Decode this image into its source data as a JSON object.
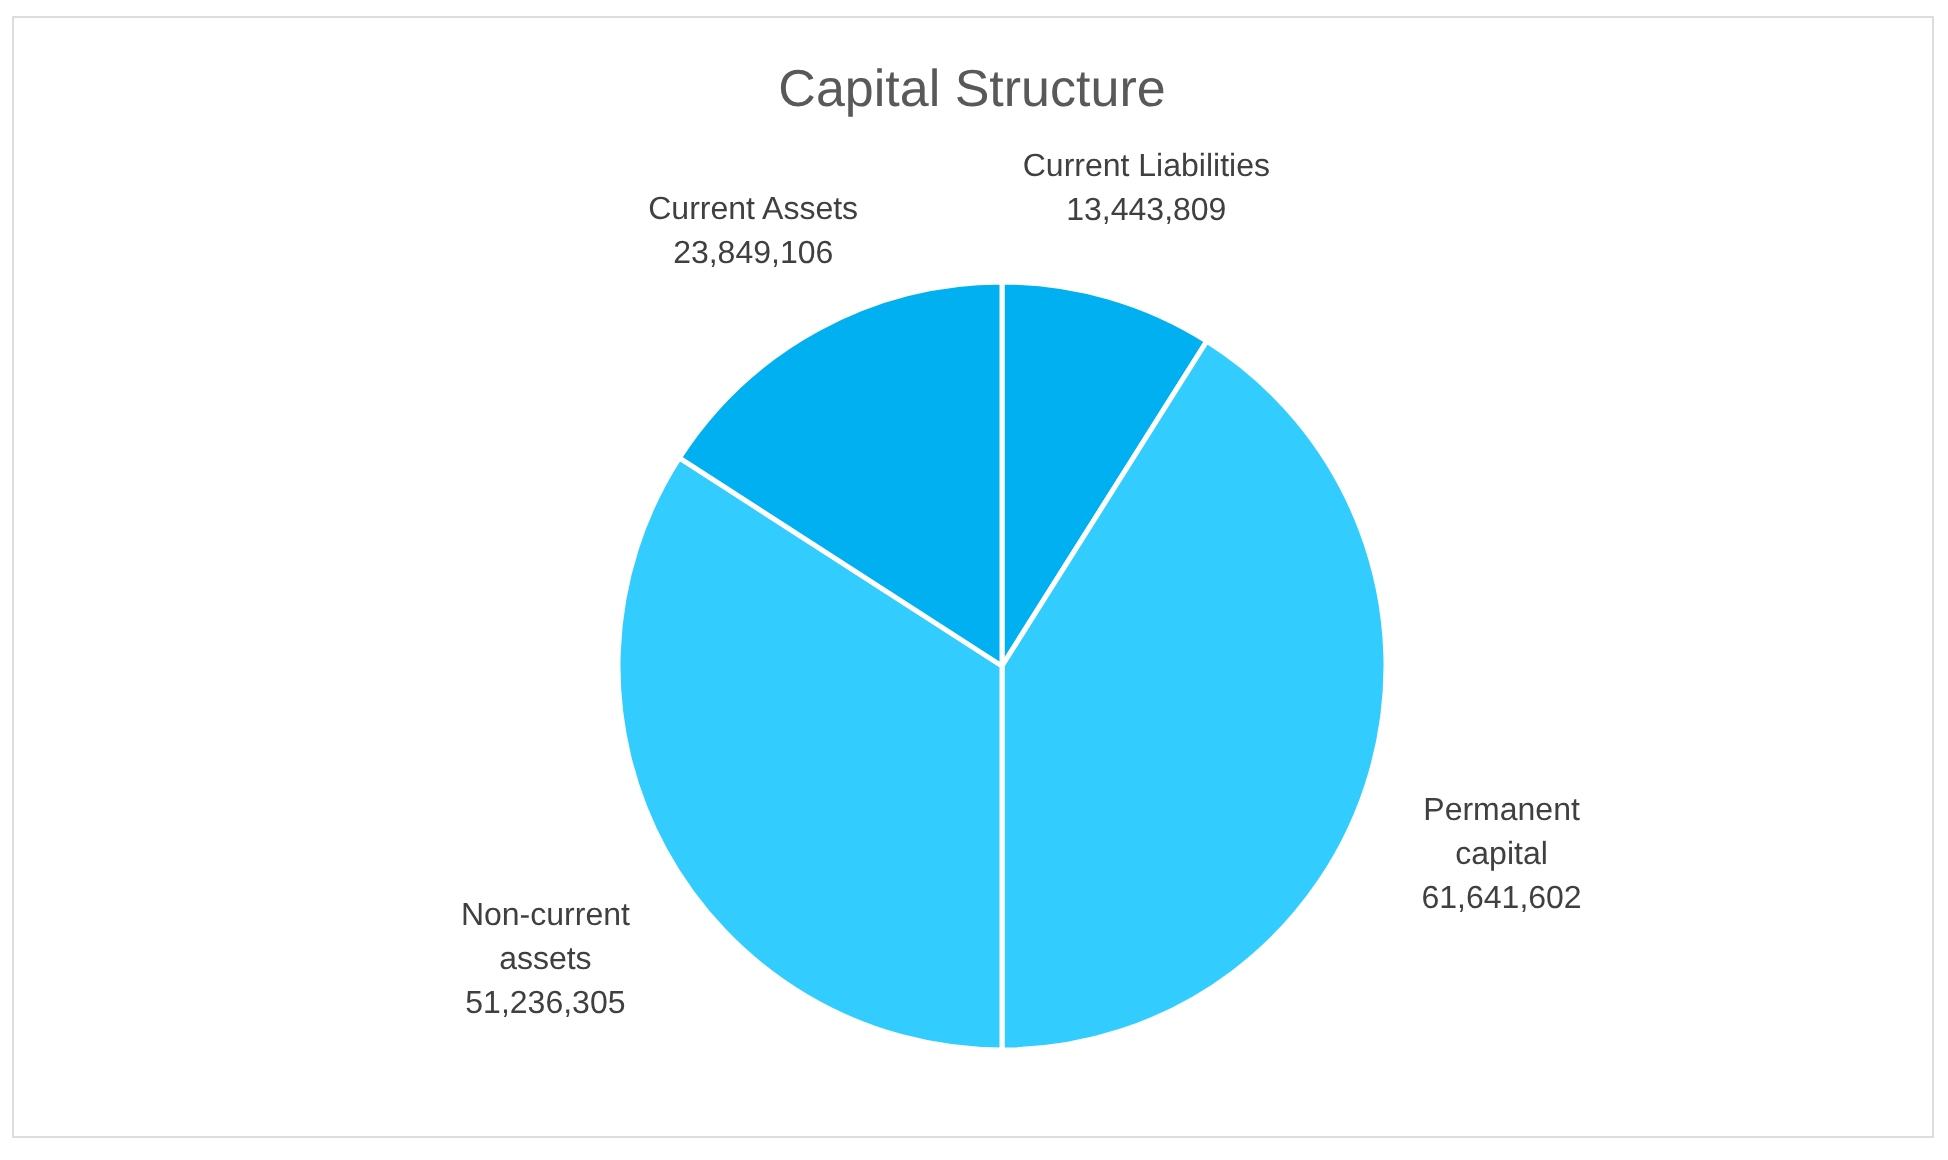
{
  "chart_data": {
    "type": "pie",
    "title": "Capital Structure",
    "categories": [
      "Current Liabilities",
      "Permanent capital",
      "Non-current assets",
      "Current Assets"
    ],
    "values": [
      13443809,
      61641602,
      51236305,
      23849106
    ],
    "colors": [
      "#00b0f0",
      "#33ccff",
      "#33ccff",
      "#00b0f0"
    ],
    "value_labels": [
      "13,443,809",
      "61,641,602",
      "51,236,305",
      "23,849,106"
    ],
    "legend": false
  }
}
